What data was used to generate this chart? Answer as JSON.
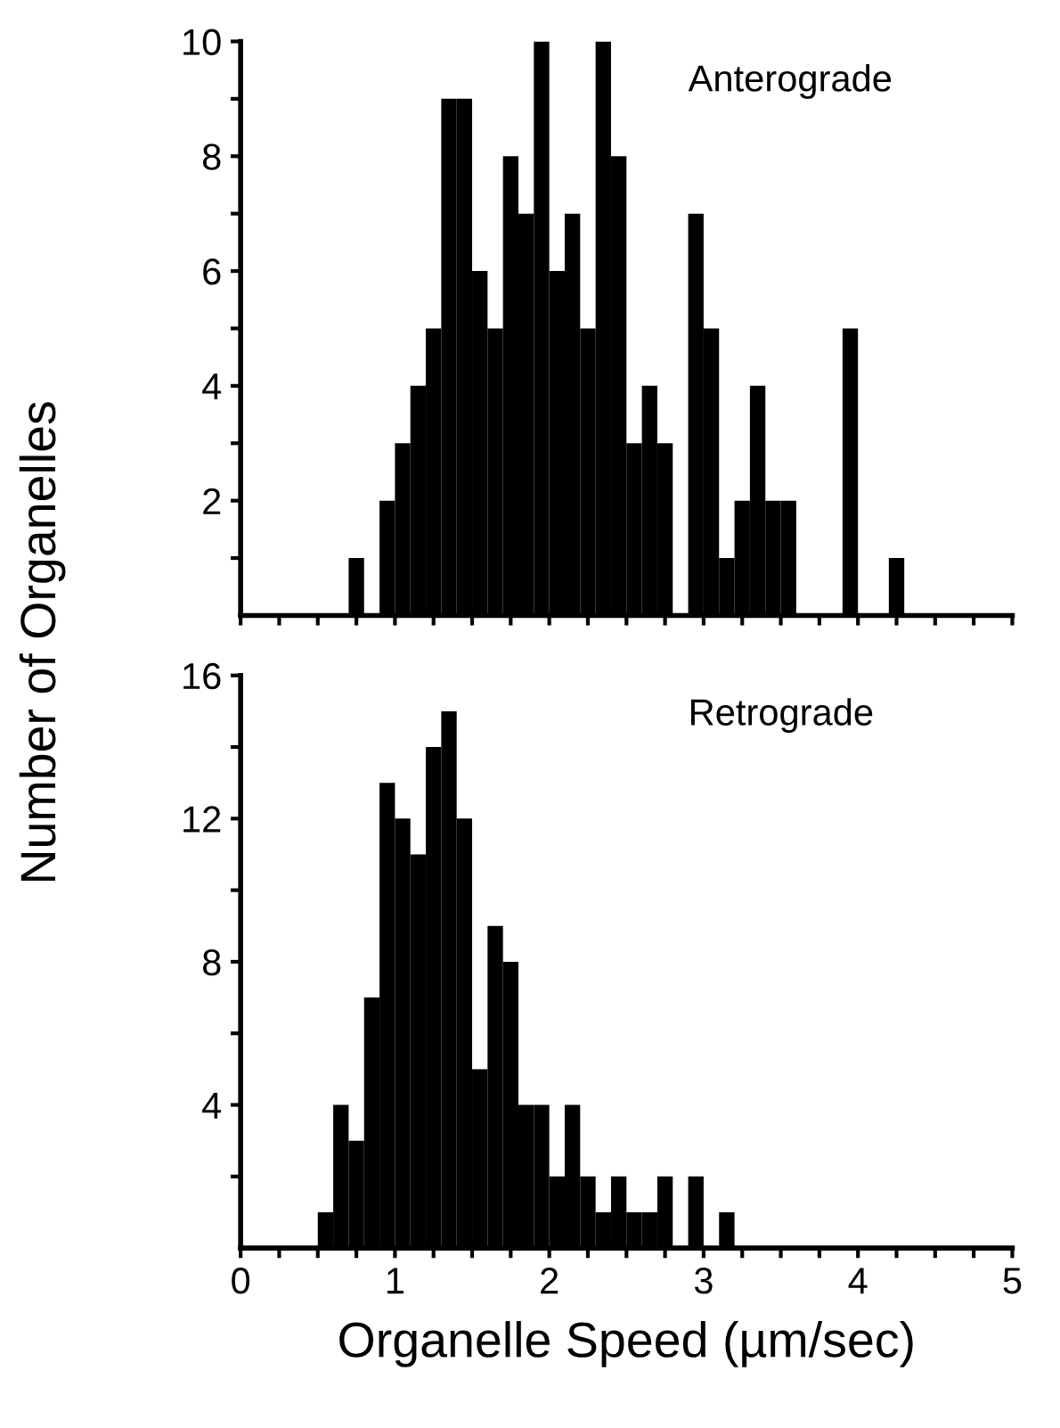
{
  "chart_data": [
    {
      "type": "histogram",
      "ylabel": "Number of Organelles",
      "annotations": [
        "Anterograde"
      ],
      "color": "#000000",
      "bins": [
        0.7,
        0.8,
        0.9,
        1.0,
        1.1,
        1.2,
        1.3,
        1.4,
        1.5,
        1.6,
        1.7,
        1.8,
        1.9,
        2.0,
        2.1,
        2.2,
        2.3,
        2.4,
        2.5,
        2.6,
        2.7,
        2.8,
        2.9,
        3.0,
        3.1,
        3.2,
        3.3,
        3.4,
        3.5,
        3.6,
        3.7,
        3.8,
        3.9,
        4.0,
        4.1,
        4.2,
        4.3
      ],
      "values": [
        1,
        0,
        2,
        3,
        4,
        5,
        9,
        9,
        6,
        5,
        8,
        7,
        10,
        6,
        7,
        5,
        10,
        8,
        3,
        4,
        3,
        0,
        7,
        5,
        1,
        2,
        4,
        2,
        2,
        0,
        0,
        0,
        5,
        0,
        0,
        1
      ],
      "xlim": [
        0,
        5
      ],
      "ylim": [
        0,
        10
      ],
      "tick_labels": "y",
      "xticks": [
        {
          "value": 0,
          "label": null
        },
        {
          "value": 0.25,
          "label": null
        },
        {
          "value": 0.5,
          "label": null
        },
        {
          "value": 0.75,
          "label": null
        },
        {
          "value": 1,
          "label": null
        },
        {
          "value": 1.25,
          "label": null
        },
        {
          "value": 1.5,
          "label": null
        },
        {
          "value": 1.75,
          "label": null
        },
        {
          "value": 2,
          "label": null
        },
        {
          "value": 2.25,
          "label": null
        },
        {
          "value": 2.5,
          "label": null
        },
        {
          "value": 2.75,
          "label": null
        },
        {
          "value": 3,
          "label": null
        },
        {
          "value": 3.25,
          "label": null
        },
        {
          "value": 3.5,
          "label": null
        },
        {
          "value": 3.75,
          "label": null
        },
        {
          "value": 4,
          "label": null
        },
        {
          "value": 4.25,
          "label": null
        },
        {
          "value": 4.5,
          "label": null
        },
        {
          "value": 4.75,
          "label": null
        },
        {
          "value": 5,
          "label": null
        }
      ],
      "yticks": [
        {
          "value": 1,
          "label": null
        },
        2,
        {
          "value": 3,
          "label": null
        },
        4,
        {
          "value": 5,
          "label": null
        },
        6,
        {
          "value": 7,
          "label": null
        },
        8,
        {
          "value": 9,
          "label": null
        },
        10
      ]
    },
    {
      "type": "histogram",
      "xlabel": "Organelle Speed (µm/sec)",
      "annotations": [
        "Retrograde"
      ],
      "color": "#000000",
      "bins": [
        0.5,
        0.6,
        0.7,
        0.8,
        0.9,
        1.0,
        1.1,
        1.2,
        1.3,
        1.4,
        1.5,
        1.6,
        1.7,
        1.8,
        1.9,
        2.0,
        2.1,
        2.2,
        2.3,
        2.4,
        2.5,
        2.6,
        2.7,
        2.8,
        2.9,
        3.0,
        3.1,
        3.2
      ],
      "values": [
        1,
        4,
        3,
        7,
        13,
        12,
        11,
        14,
        15,
        12,
        5,
        9,
        8,
        4,
        4,
        2,
        4,
        2,
        1,
        2,
        1,
        1,
        2,
        0,
        2,
        0,
        1
      ],
      "xlim": [
        0,
        5
      ],
      "ylim": [
        0,
        16
      ],
      "xticks": [
        0,
        {
          "value": 0.25,
          "label": null
        },
        {
          "value": 0.5,
          "label": null
        },
        {
          "value": 0.75,
          "label": null
        },
        1,
        {
          "value": 1.25,
          "label": null
        },
        {
          "value": 1.5,
          "label": null
        },
        {
          "value": 1.75,
          "label": null
        },
        2,
        {
          "value": 2.25,
          "label": null
        },
        {
          "value": 2.5,
          "label": null
        },
        {
          "value": 2.75,
          "label": null
        },
        3,
        {
          "value": 3.25,
          "label": null
        },
        {
          "value": 3.5,
          "label": null
        },
        {
          "value": 3.75,
          "label": null
        },
        4,
        {
          "value": 4.25,
          "label": null
        },
        {
          "value": 4.5,
          "label": null
        },
        {
          "value": 4.75,
          "label": null
        },
        5
      ],
      "yticks": [
        {
          "value": 2,
          "label": null
        },
        4,
        {
          "value": 6,
          "label": null
        },
        8,
        {
          "value": 10,
          "label": null
        },
        12,
        {
          "value": 14,
          "label": null
        },
        16
      ]
    }
  ]
}
